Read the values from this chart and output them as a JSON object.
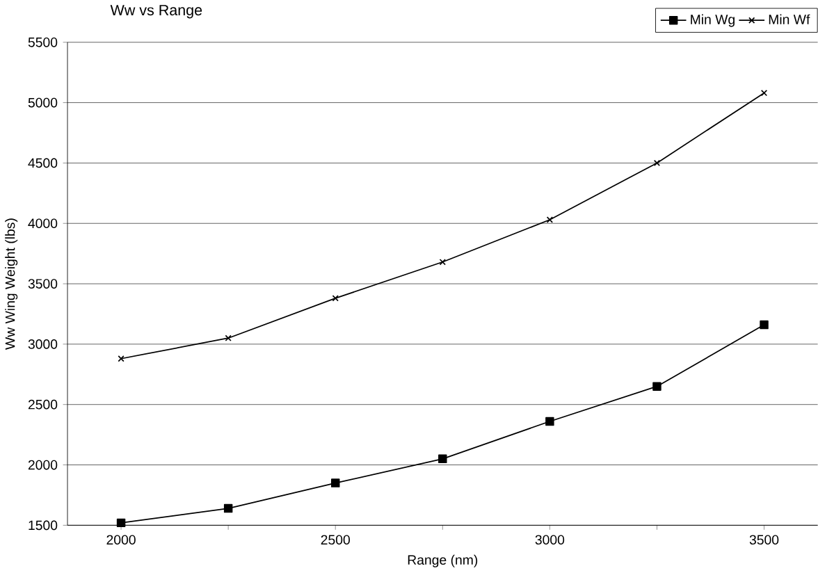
{
  "chart_data": {
    "type": "line",
    "title": "Ww vs Range",
    "xlabel": "Range (nm)",
    "ylabel": "Ww Wing Weight (lbs)",
    "x": [
      2000,
      2250,
      2500,
      2750,
      3000,
      3250,
      3500
    ],
    "series": [
      {
        "name": "Min Wg",
        "color": "#000000",
        "marker": "square",
        "values": [
          1520,
          1640,
          1850,
          2050,
          2360,
          2650,
          3160
        ]
      },
      {
        "name": "Min Wf",
        "color": "#000000",
        "marker": "cross",
        "values": [
          2880,
          3050,
          3380,
          3680,
          4030,
          4500,
          5080
        ]
      }
    ],
    "xlim": [
      1875,
      3625
    ],
    "xticks": [
      2000,
      {
        "value": 2250,
        "label": null
      },
      2500,
      {
        "value": 2750,
        "label": null
      },
      3000,
      {
        "value": 3250,
        "label": null
      },
      3500
    ],
    "ylim": [
      1500,
      5500
    ],
    "yticks": [
      1500,
      2000,
      2500,
      3000,
      3500,
      4000,
      4500,
      5000,
      5500
    ],
    "grid": "y",
    "legend": "top right",
    "line_style": "solid"
  }
}
